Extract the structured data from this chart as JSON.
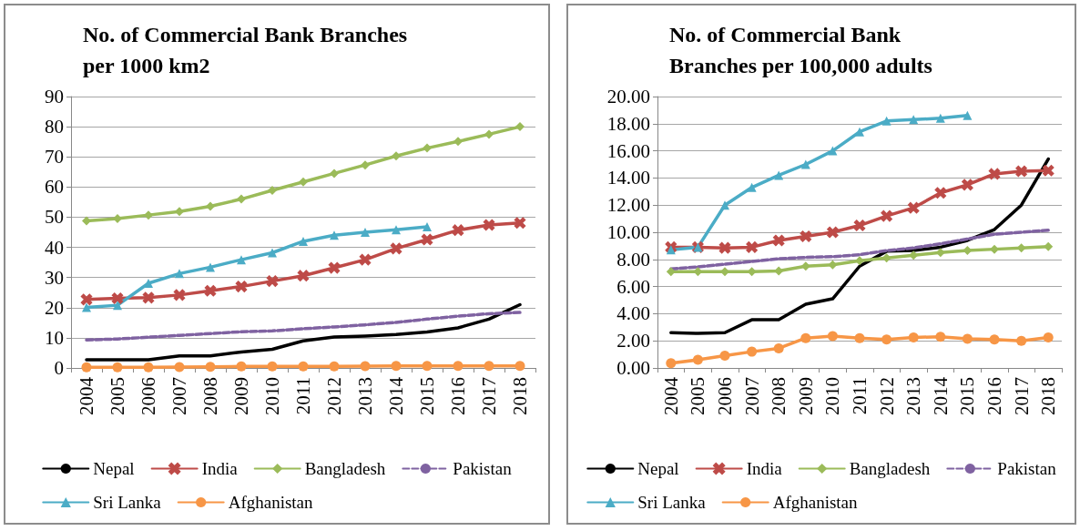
{
  "chart_data": [
    {
      "type": "line",
      "title": "No. of Commercial Bank Branches per 1000 km2",
      "categories": [
        "2004",
        "2005",
        "2006",
        "2007",
        "2008",
        "2009",
        "2010",
        "2011",
        "2012",
        "2013",
        "2014",
        "2015",
        "2016",
        "2017",
        "2018"
      ],
      "series": [
        {
          "name": "Nepal",
          "color": "#000000",
          "marker": "none",
          "values": [
            2.7,
            2.7,
            2.7,
            4,
            4,
            5.3,
            6.2,
            9,
            10.3,
            10.6,
            11.1,
            11.9,
            13.3,
            16.2,
            21
          ]
        },
        {
          "name": "India",
          "color": "#be4b48",
          "marker": "cross",
          "values": [
            22.7,
            23.1,
            23.3,
            24.2,
            25.6,
            27,
            28.8,
            30.6,
            33.2,
            35.9,
            39.6,
            42.6,
            45.7,
            47.4,
            48.1
          ]
        },
        {
          "name": "Bangladesh",
          "color": "#9bbb59",
          "marker": "diamond",
          "values": [
            48.8,
            49.5,
            50.7,
            51.9,
            53.6,
            56,
            58.9,
            61.7,
            64.5,
            67.3,
            70.3,
            72.9,
            75.1,
            77.5,
            80
          ]
        },
        {
          "name": "Pakistan",
          "color": "#7f62a1",
          "marker": "none",
          "line_style": "dashed",
          "values": [
            9.3,
            9.6,
            10.2,
            10.8,
            11.4,
            12,
            12.3,
            13,
            13.6,
            14.3,
            15.1,
            16.2,
            17.2,
            18,
            18.4
          ]
        },
        {
          "name": "Sri Lanka",
          "color": "#4bacc6",
          "marker": "triangle",
          "values": [
            20.1,
            20.8,
            28.1,
            31.3,
            33.4,
            35.9,
            38.2,
            42,
            44,
            45,
            45.8,
            46.8,
            null,
            null,
            null
          ]
        },
        {
          "name": "Afghanistan",
          "color": "#f79646",
          "marker": "circle",
          "values": [
            0.2,
            0.2,
            0.2,
            0.3,
            0.4,
            0.5,
            0.5,
            0.5,
            0.5,
            0.6,
            0.7,
            0.7,
            0.7,
            0.7,
            0.7
          ]
        }
      ],
      "ylim": [
        0,
        90
      ],
      "yticks": [
        0,
        10,
        20,
        30,
        40,
        50,
        60,
        70,
        80,
        90
      ],
      "grid": "y",
      "legend": "bottom"
    },
    {
      "type": "line",
      "title": "No. of Commercial Bank Branches per 100,000 adults",
      "categories": [
        "2004",
        "2005",
        "2006",
        "2007",
        "2008",
        "2009",
        "2010",
        "2011",
        "2012",
        "2013",
        "2014",
        "2015",
        "2016",
        "2017",
        "2018"
      ],
      "series": [
        {
          "name": "Nepal",
          "color": "#000000",
          "marker": "none",
          "values": [
            2.6,
            2.55,
            2.6,
            3.55,
            3.55,
            4.7,
            5.1,
            7.5,
            8.6,
            8.65,
            8.9,
            9.4,
            10.2,
            12,
            15.4
          ]
        },
        {
          "name": "India",
          "color": "#be4b48",
          "marker": "cross",
          "values": [
            8.9,
            8.9,
            8.85,
            8.9,
            9.4,
            9.7,
            10,
            10.5,
            11.2,
            11.8,
            12.9,
            13.5,
            14.3,
            14.5,
            14.55
          ]
        },
        {
          "name": "Bangladesh",
          "color": "#9bbb59",
          "marker": "diamond",
          "values": [
            7.1,
            7.1,
            7.1,
            7.1,
            7.15,
            7.5,
            7.6,
            7.9,
            8.1,
            8.3,
            8.5,
            8.65,
            8.75,
            8.85,
            8.95
          ]
        },
        {
          "name": "Pakistan",
          "color": "#7f62a1",
          "marker": "none",
          "line_style": "dashed",
          "values": [
            7.3,
            7.45,
            7.65,
            7.85,
            8.05,
            8.15,
            8.2,
            8.35,
            8.65,
            8.85,
            9.15,
            9.5,
            9.85,
            10,
            10.15
          ]
        },
        {
          "name": "Sri Lanka",
          "color": "#4bacc6",
          "marker": "triangle",
          "values": [
            8.7,
            8.9,
            12,
            13.3,
            14.2,
            15,
            16,
            17.4,
            18.2,
            18.3,
            18.4,
            18.6,
            null,
            null,
            null
          ]
        },
        {
          "name": "Afghanistan",
          "color": "#f79646",
          "marker": "circle",
          "values": [
            0.35,
            0.6,
            0.9,
            1.2,
            1.45,
            2.2,
            2.35,
            2.2,
            2.1,
            2.25,
            2.3,
            2.15,
            2.1,
            2,
            2.25
          ]
        }
      ],
      "ylim": [
        0,
        20
      ],
      "yticks": [
        {
          "value": 0,
          "label": "0.00"
        },
        {
          "value": 2,
          "label": "2.00"
        },
        {
          "value": 4,
          "label": "4.00"
        },
        {
          "value": 6,
          "label": "6.00"
        },
        {
          "value": 8,
          "label": "8.00"
        },
        {
          "value": 10,
          "label": "10.00"
        },
        {
          "value": 12,
          "label": "12.00"
        },
        {
          "value": 14,
          "label": "14.00"
        },
        {
          "value": 16,
          "label": "16.00"
        },
        {
          "value": 18,
          "label": "18.00"
        },
        {
          "value": 20,
          "label": "20.00"
        }
      ],
      "grid": "y",
      "legend": "bottom"
    }
  ]
}
